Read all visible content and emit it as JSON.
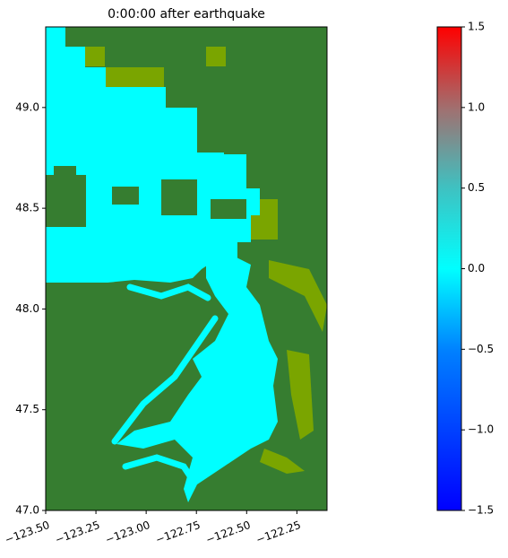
{
  "chart_data": {
    "type": "map",
    "title": "0:00:00 after earthquake",
    "xlim": [
      -123.5,
      -122.1
    ],
    "ylim": [
      47.0,
      49.4
    ],
    "xticks": [
      {
        "value": -123.5,
        "label": "−123.50"
      },
      {
        "value": -123.25,
        "label": "−123.25"
      },
      {
        "value": -123.0,
        "label": "−123.00"
      },
      {
        "value": -122.75,
        "label": "−122.75"
      },
      {
        "value": -122.5,
        "label": "−122.50"
      },
      {
        "value": -122.25,
        "label": "−122.25"
      }
    ],
    "yticks": [
      {
        "value": 47.0,
        "label": "47.0"
      },
      {
        "value": 47.5,
        "label": "47.5"
      },
      {
        "value": 48.0,
        "label": "48.0"
      },
      {
        "value": 48.5,
        "label": "48.5"
      },
      {
        "value": 49.0,
        "label": "49.0"
      }
    ],
    "colorbar": {
      "lim": [
        -1.5,
        1.5
      ],
      "ticks": [
        {
          "value": -1.5,
          "label": "−1.5"
        },
        {
          "value": -1.0,
          "label": "−1.0"
        },
        {
          "value": -0.5,
          "label": "−0.5"
        },
        {
          "value": 0.0,
          "label": "0.0"
        },
        0.5,
        {
          "value": 1.0,
          "label": "1.0"
        },
        1.5
      ]
    }
  }
}
